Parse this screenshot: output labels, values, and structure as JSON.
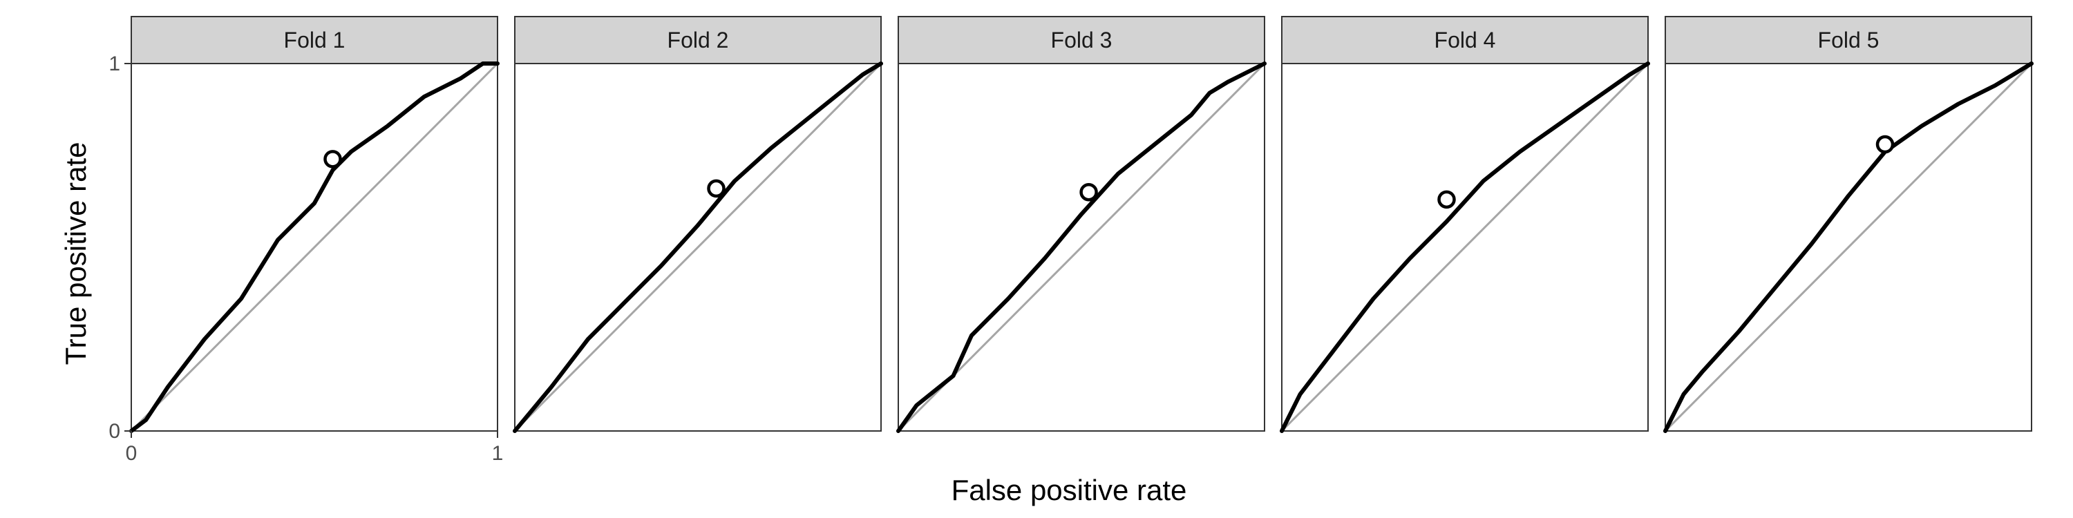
{
  "chart_data": {
    "type": "line",
    "xlabel": "False positive rate",
    "ylabel": "True positive rate",
    "xlim": [
      0,
      1
    ],
    "ylim": [
      0,
      1
    ],
    "x_ticks": [
      "0",
      "1"
    ],
    "y_ticks": [
      "0",
      "1"
    ],
    "grid": false,
    "reference_line": "diagonal",
    "reference_color": "#a6a6a6",
    "curve_color": "#000000",
    "strip_fill": "#d3d3d3",
    "panels": [
      {
        "label": "Fold 1",
        "roc": [
          [
            0,
            0
          ],
          [
            0.04,
            0.03
          ],
          [
            0.1,
            0.12
          ],
          [
            0.2,
            0.25
          ],
          [
            0.3,
            0.36
          ],
          [
            0.4,
            0.52
          ],
          [
            0.5,
            0.62
          ],
          [
            0.55,
            0.71
          ],
          [
            0.6,
            0.76
          ],
          [
            0.7,
            0.83
          ],
          [
            0.8,
            0.91
          ],
          [
            0.9,
            0.96
          ],
          [
            0.96,
            1
          ],
          [
            1,
            1
          ]
        ],
        "threshold_point": [
          0.55,
          0.74
        ]
      },
      {
        "label": "Fold 2",
        "roc": [
          [
            0,
            0
          ],
          [
            0.1,
            0.12
          ],
          [
            0.2,
            0.25
          ],
          [
            0.3,
            0.35
          ],
          [
            0.4,
            0.45
          ],
          [
            0.5,
            0.56
          ],
          [
            0.6,
            0.68
          ],
          [
            0.7,
            0.77
          ],
          [
            0.8,
            0.85
          ],
          [
            0.9,
            0.93
          ],
          [
            0.95,
            0.97
          ],
          [
            1,
            1
          ]
        ],
        "threshold_point": [
          0.55,
          0.66
        ]
      },
      {
        "label": "Fold 3",
        "roc": [
          [
            0,
            0
          ],
          [
            0.05,
            0.07
          ],
          [
            0.15,
            0.15
          ],
          [
            0.2,
            0.26
          ],
          [
            0.3,
            0.36
          ],
          [
            0.4,
            0.47
          ],
          [
            0.5,
            0.59
          ],
          [
            0.6,
            0.7
          ],
          [
            0.7,
            0.78
          ],
          [
            0.8,
            0.86
          ],
          [
            0.85,
            0.92
          ],
          [
            0.9,
            0.95
          ],
          [
            1,
            1
          ]
        ],
        "threshold_point": [
          0.52,
          0.65
        ]
      },
      {
        "label": "Fold 4",
        "roc": [
          [
            0,
            0
          ],
          [
            0.05,
            0.1
          ],
          [
            0.15,
            0.23
          ],
          [
            0.25,
            0.36
          ],
          [
            0.35,
            0.47
          ],
          [
            0.45,
            0.57
          ],
          [
            0.55,
            0.68
          ],
          [
            0.65,
            0.76
          ],
          [
            0.75,
            0.83
          ],
          [
            0.85,
            0.9
          ],
          [
            0.95,
            0.97
          ],
          [
            1,
            1
          ]
        ],
        "threshold_point": [
          0.45,
          0.63
        ]
      },
      {
        "label": "Fold 5",
        "roc": [
          [
            0,
            0
          ],
          [
            0.05,
            0.1
          ],
          [
            0.1,
            0.16
          ],
          [
            0.2,
            0.27
          ],
          [
            0.3,
            0.39
          ],
          [
            0.4,
            0.51
          ],
          [
            0.5,
            0.64
          ],
          [
            0.6,
            0.76
          ],
          [
            0.7,
            0.83
          ],
          [
            0.8,
            0.89
          ],
          [
            0.9,
            0.94
          ],
          [
            1,
            1
          ]
        ],
        "threshold_point": [
          0.6,
          0.78
        ]
      }
    ]
  }
}
